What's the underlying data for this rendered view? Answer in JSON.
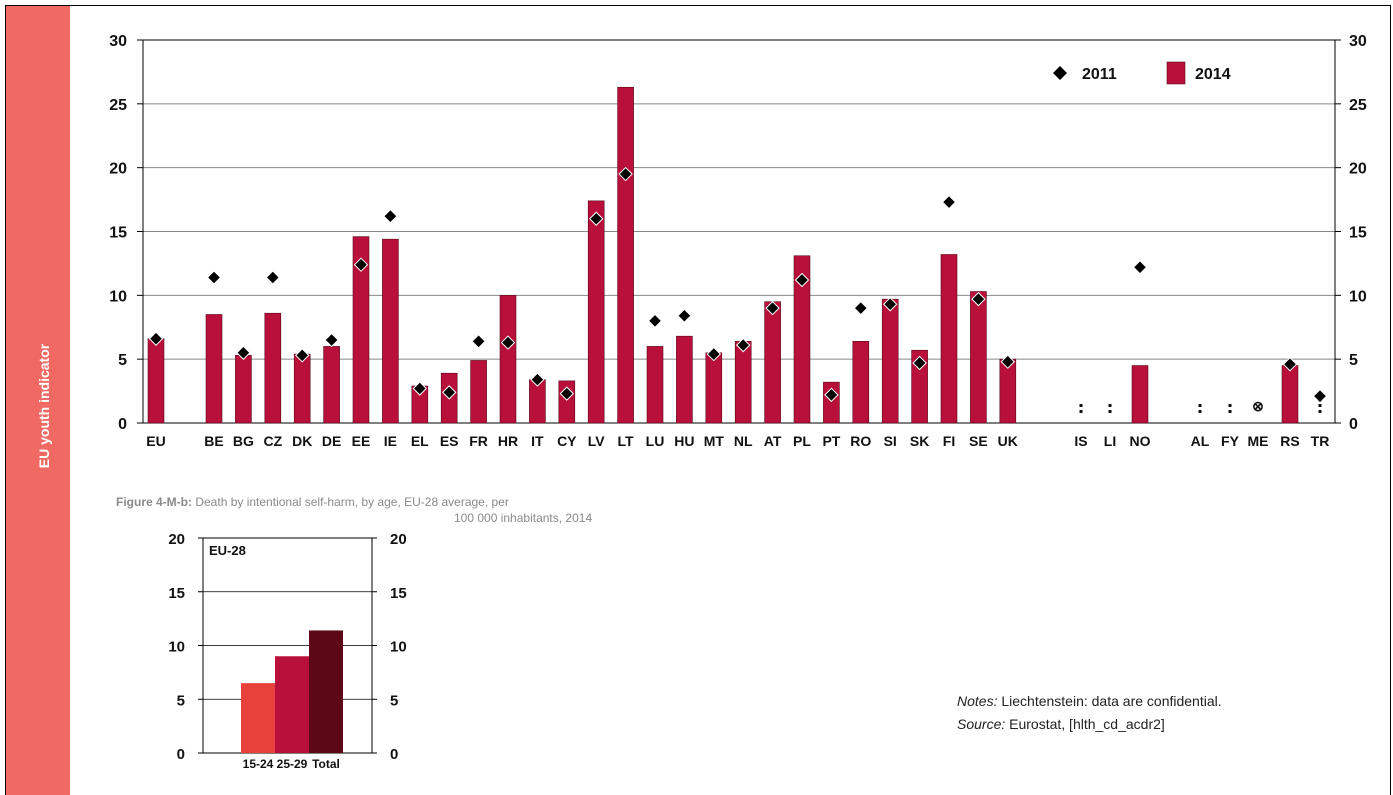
{
  "side_label": "EU youth indicator",
  "caption": {
    "label": "Figure 4-M-b:",
    "text_line1": "Death by intentional self-harm, by age, EU-28 average, per",
    "text_line2": "100 000 inhabitants, 2014"
  },
  "notes": {
    "notes_label": "Notes:",
    "notes_text": "Liechtenstein: data are confidential.",
    "source_label": "Source:",
    "source_text": "Eurostat, [hlth_cd_acdr2]"
  },
  "colors": {
    "bar_2014": "#b8103a",
    "marker_2011": "#000000",
    "sub_15_24": "#e8413c",
    "sub_25_29": "#b8103a",
    "sub_total": "#5c0817",
    "side_strip": "#f06a63"
  },
  "chart_data": [
    {
      "type": "bar",
      "ylim": [
        0,
        30
      ],
      "yticks": [
        0,
        5,
        10,
        15,
        20,
        25,
        30
      ],
      "legend_position": "top-right",
      "grid": true,
      "categories": [
        "EU",
        "BE",
        "BG",
        "CZ",
        "DK",
        "DE",
        "EE",
        "IE",
        "EL",
        "ES",
        "FR",
        "HR",
        "IT",
        "CY",
        "LV",
        "LT",
        "LU",
        "HU",
        "MT",
        "NL",
        "AT",
        "PL",
        "PT",
        "RO",
        "SI",
        "SK",
        "FI",
        "SE",
        "UK",
        "IS",
        "LI",
        "NO",
        "AL",
        "FY",
        "ME",
        "RS",
        "TR"
      ],
      "series": [
        {
          "name": "2011",
          "kind": "marker",
          "values": [
            6.6,
            11.4,
            5.5,
            11.4,
            5.3,
            6.5,
            12.4,
            16.2,
            2.7,
            2.4,
            6.4,
            6.3,
            3.4,
            2.3,
            16.0,
            19.5,
            8.0,
            8.4,
            5.4,
            6.1,
            9.0,
            11.2,
            2.2,
            9.0,
            9.3,
            4.7,
            17.3,
            9.7,
            4.8,
            null,
            null,
            12.2,
            null,
            null,
            null,
            4.6,
            2.1
          ]
        },
        {
          "name": "2014",
          "kind": "bar",
          "values": [
            6.6,
            8.5,
            5.3,
            8.6,
            5.4,
            6.0,
            14.6,
            14.4,
            2.9,
            3.9,
            4.9,
            10.0,
            3.4,
            3.3,
            17.4,
            26.3,
            6.0,
            6.8,
            5.5,
            6.4,
            9.5,
            13.1,
            3.2,
            6.4,
            9.7,
            5.7,
            13.2,
            10.3,
            5.0,
            null,
            null,
            4.5,
            null,
            null,
            null,
            4.5,
            null
          ]
        }
      ],
      "special_markers": [
        {
          "category": "IS",
          "symbol": ":"
        },
        {
          "category": "LI",
          "symbol": ":"
        },
        {
          "category": "AL",
          "symbol": ":"
        },
        {
          "category": "FY",
          "symbol": ":"
        },
        {
          "category": "ME",
          "symbol": "⊗"
        },
        {
          "category": "TR",
          "symbol": ":"
        }
      ]
    },
    {
      "type": "bar",
      "panel_label": "EU-28",
      "ylim": [
        0,
        20
      ],
      "yticks": [
        0,
        5,
        10,
        15,
        20
      ],
      "categories": [
        "15-24",
        "25-29",
        "Total"
      ],
      "values": [
        6.5,
        9.0,
        11.4
      ]
    }
  ]
}
